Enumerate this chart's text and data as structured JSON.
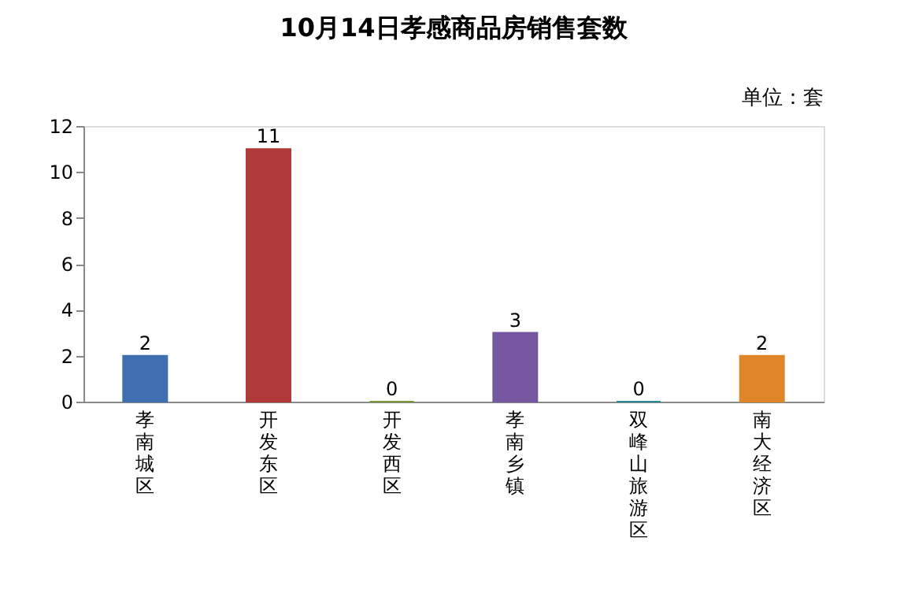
{
  "chart_data": {
    "type": "bar",
    "title": "10月14日孝感商品房销售套数",
    "annotations": [
      "单位：套"
    ],
    "categories": [
      "孝南城区",
      "开发东区",
      "开发西区",
      "孝南乡镇",
      "双峰山旅游区",
      "南大经济区"
    ],
    "values": [
      2,
      11,
      0,
      3,
      0,
      2
    ],
    "colors": [
      "#3f6fb0",
      "#b03a3a",
      "#7a9a3a",
      "#7457a0",
      "#2a8a9a",
      "#e0862a"
    ],
    "ylim": [
      0,
      12
    ],
    "yticks": [
      0,
      2,
      4,
      6,
      8,
      10,
      12
    ],
    "grid": false,
    "data_labels": true
  }
}
